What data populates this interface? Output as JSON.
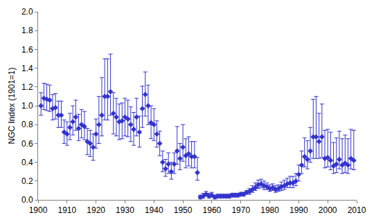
{
  "chart_data": {
    "type": "scatter",
    "y_label": "NGC Index (1901=1)",
    "color": "#3333cc",
    "marker": "diamond",
    "grid": false,
    "xlim": [
      1900,
      2010
    ],
    "xticks": [
      1900,
      1910,
      1920,
      1930,
      1940,
      1950,
      1960,
      1970,
      1980,
      1990,
      2000,
      2010
    ],
    "ylim": [
      0,
      2
    ],
    "yticks": [
      {
        "value": 0,
        "label": "0.0"
      },
      0.2,
      0.4,
      0.6,
      0.8,
      {
        "value": 1,
        "label": "1.0"
      },
      1.2,
      1.4,
      1.6,
      1.8,
      {
        "value": 2,
        "label": "2.0"
      }
    ],
    "x": [
      1901,
      1902,
      1903,
      1904,
      1905,
      1906,
      1907,
      1908,
      1909,
      1910,
      1911,
      1912,
      1913,
      1914,
      1915,
      1916,
      1917,
      1918,
      1919,
      1920,
      1921,
      1922,
      1923,
      1924,
      1925,
      1926,
      1927,
      1928,
      1929,
      1930,
      1931,
      1932,
      1933,
      1934,
      1935,
      1936,
      1937,
      1938,
      1939,
      1940,
      1941,
      1942,
      1943,
      1944,
      1945,
      1946,
      1947,
      1948,
      1949,
      1950,
      1951,
      1952,
      1953,
      1954,
      1955,
      1956,
      1957,
      1958,
      1959,
      1960,
      1961,
      1962,
      1963,
      1964,
      1965,
      1966,
      1967,
      1968,
      1969,
      1970,
      1971,
      1972,
      1973,
      1974,
      1975,
      1976,
      1977,
      1978,
      1979,
      1980,
      1981,
      1982,
      1983,
      1984,
      1985,
      1986,
      1987,
      1988,
      1989,
      1990,
      1991,
      1992,
      1993,
      1994,
      1995,
      1996,
      1997,
      1998,
      1999,
      2000,
      2001,
      2002,
      2003,
      2004,
      2005,
      2006,
      2007,
      2008,
      2009
    ],
    "values": [
      1.0,
      1.08,
      1.07,
      1.06,
      0.97,
      0.98,
      0.9,
      0.9,
      0.72,
      0.7,
      0.77,
      0.83,
      0.88,
      0.76,
      0.8,
      0.78,
      0.62,
      0.6,
      0.56,
      0.7,
      0.8,
      0.9,
      1.1,
      1.1,
      1.15,
      0.92,
      0.88,
      0.83,
      0.84,
      0.88,
      0.86,
      0.8,
      0.75,
      0.88,
      0.72,
      0.97,
      1.12,
      1.0,
      0.82,
      0.8,
      0.7,
      0.6,
      0.4,
      0.33,
      0.38,
      0.3,
      0.38,
      0.52,
      0.44,
      0.56,
      0.47,
      0.49,
      0.46,
      0.46,
      0.29,
      0.03,
      0.04,
      0.06,
      0.04,
      0.05,
      0.03,
      0.04,
      0.04,
      0.04,
      0.04,
      0.04,
      0.05,
      0.05,
      0.05,
      0.06,
      0.06,
      0.08,
      0.09,
      0.11,
      0.13,
      0.16,
      0.17,
      0.15,
      0.14,
      0.12,
      0.13,
      0.11,
      0.12,
      0.14,
      0.15,
      0.17,
      0.18,
      0.18,
      0.2,
      0.27,
      0.37,
      0.46,
      0.43,
      0.52,
      0.67,
      0.67,
      0.62,
      0.67,
      0.44,
      0.45,
      0.42,
      0.36,
      0.38,
      0.43,
      0.37,
      0.39,
      0.37,
      0.44,
      0.42
    ],
    "error_minus": [
      0.1,
      0.12,
      0.12,
      0.12,
      0.12,
      0.12,
      0.13,
      0.13,
      0.12,
      0.12,
      0.13,
      0.14,
      0.14,
      0.13,
      0.14,
      0.14,
      0.14,
      0.14,
      0.14,
      0.15,
      0.2,
      0.22,
      0.25,
      0.25,
      0.25,
      0.22,
      0.2,
      0.19,
      0.19,
      0.2,
      0.19,
      0.18,
      0.17,
      0.2,
      0.16,
      0.2,
      0.23,
      0.2,
      0.17,
      0.17,
      0.14,
      0.13,
      0.1,
      0.08,
      0.1,
      0.08,
      0.1,
      0.14,
      0.12,
      0.15,
      0.13,
      0.13,
      0.12,
      0.12,
      0.08,
      0.02,
      0.02,
      0.02,
      0.02,
      0.02,
      0.02,
      0.02,
      0.02,
      0.02,
      0.02,
      0.02,
      0.02,
      0.02,
      0.02,
      0.02,
      0.02,
      0.02,
      0.03,
      0.03,
      0.03,
      0.04,
      0.04,
      0.04,
      0.03,
      0.03,
      0.03,
      0.03,
      0.03,
      0.04,
      0.04,
      0.04,
      0.05,
      0.05,
      0.05,
      0.07,
      0.09,
      0.11,
      0.1,
      0.12,
      0.23,
      0.23,
      0.18,
      0.22,
      0.1,
      0.1,
      0.1,
      0.08,
      0.09,
      0.1,
      0.09,
      0.1,
      0.09,
      0.11,
      0.1
    ],
    "error_plus": [
      0.14,
      0.16,
      0.16,
      0.16,
      0.15,
      0.15,
      0.15,
      0.15,
      0.13,
      0.13,
      0.15,
      0.17,
      0.18,
      0.15,
      0.16,
      0.16,
      0.14,
      0.14,
      0.14,
      0.16,
      0.3,
      0.4,
      0.4,
      0.4,
      0.4,
      0.22,
      0.2,
      0.19,
      0.19,
      0.2,
      0.2,
      0.19,
      0.18,
      0.2,
      0.17,
      0.24,
      0.24,
      0.22,
      0.18,
      0.17,
      0.14,
      0.13,
      0.12,
      0.1,
      0.12,
      0.1,
      0.12,
      0.26,
      0.16,
      0.24,
      0.18,
      0.18,
      0.16,
      0.16,
      0.16,
      0.02,
      0.03,
      0.03,
      0.03,
      0.03,
      0.02,
      0.02,
      0.02,
      0.02,
      0.02,
      0.02,
      0.02,
      0.02,
      0.02,
      0.02,
      0.02,
      0.02,
      0.03,
      0.04,
      0.05,
      0.05,
      0.05,
      0.05,
      0.04,
      0.04,
      0.04,
      0.04,
      0.04,
      0.05,
      0.06,
      0.06,
      0.07,
      0.07,
      0.08,
      0.1,
      0.15,
      0.2,
      0.2,
      0.25,
      0.4,
      0.43,
      0.3,
      0.35,
      0.3,
      0.3,
      0.3,
      0.25,
      0.28,
      0.3,
      0.28,
      0.3,
      0.28,
      0.31,
      0.32
    ]
  }
}
